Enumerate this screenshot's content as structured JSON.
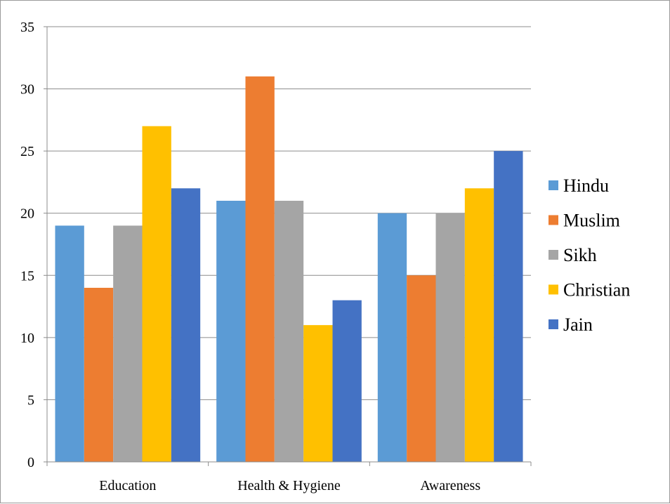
{
  "chart_data": {
    "type": "bar",
    "title": "",
    "xlabel": "",
    "ylabel": "",
    "categories": [
      "Education",
      "Health & Hygiene",
      "Awareness"
    ],
    "series": [
      {
        "name": "Hindu",
        "color": "#5B9BD5",
        "values": [
          19,
          21,
          20
        ]
      },
      {
        "name": "Muslim",
        "color": "#ED7D31",
        "values": [
          14,
          31,
          15
        ]
      },
      {
        "name": "Sikh",
        "color": "#A5A5A5",
        "values": [
          19,
          21,
          20
        ]
      },
      {
        "name": "Christian",
        "color": "#FFC000",
        "values": [
          27,
          11,
          22
        ]
      },
      {
        "name": "Jain",
        "color": "#4472C4",
        "values": [
          22,
          13,
          25
        ]
      }
    ],
    "ylim": [
      0,
      35
    ],
    "yticks": [
      0,
      5,
      10,
      15,
      20,
      25,
      30,
      35
    ],
    "grid": true,
    "legend_position": "right"
  }
}
